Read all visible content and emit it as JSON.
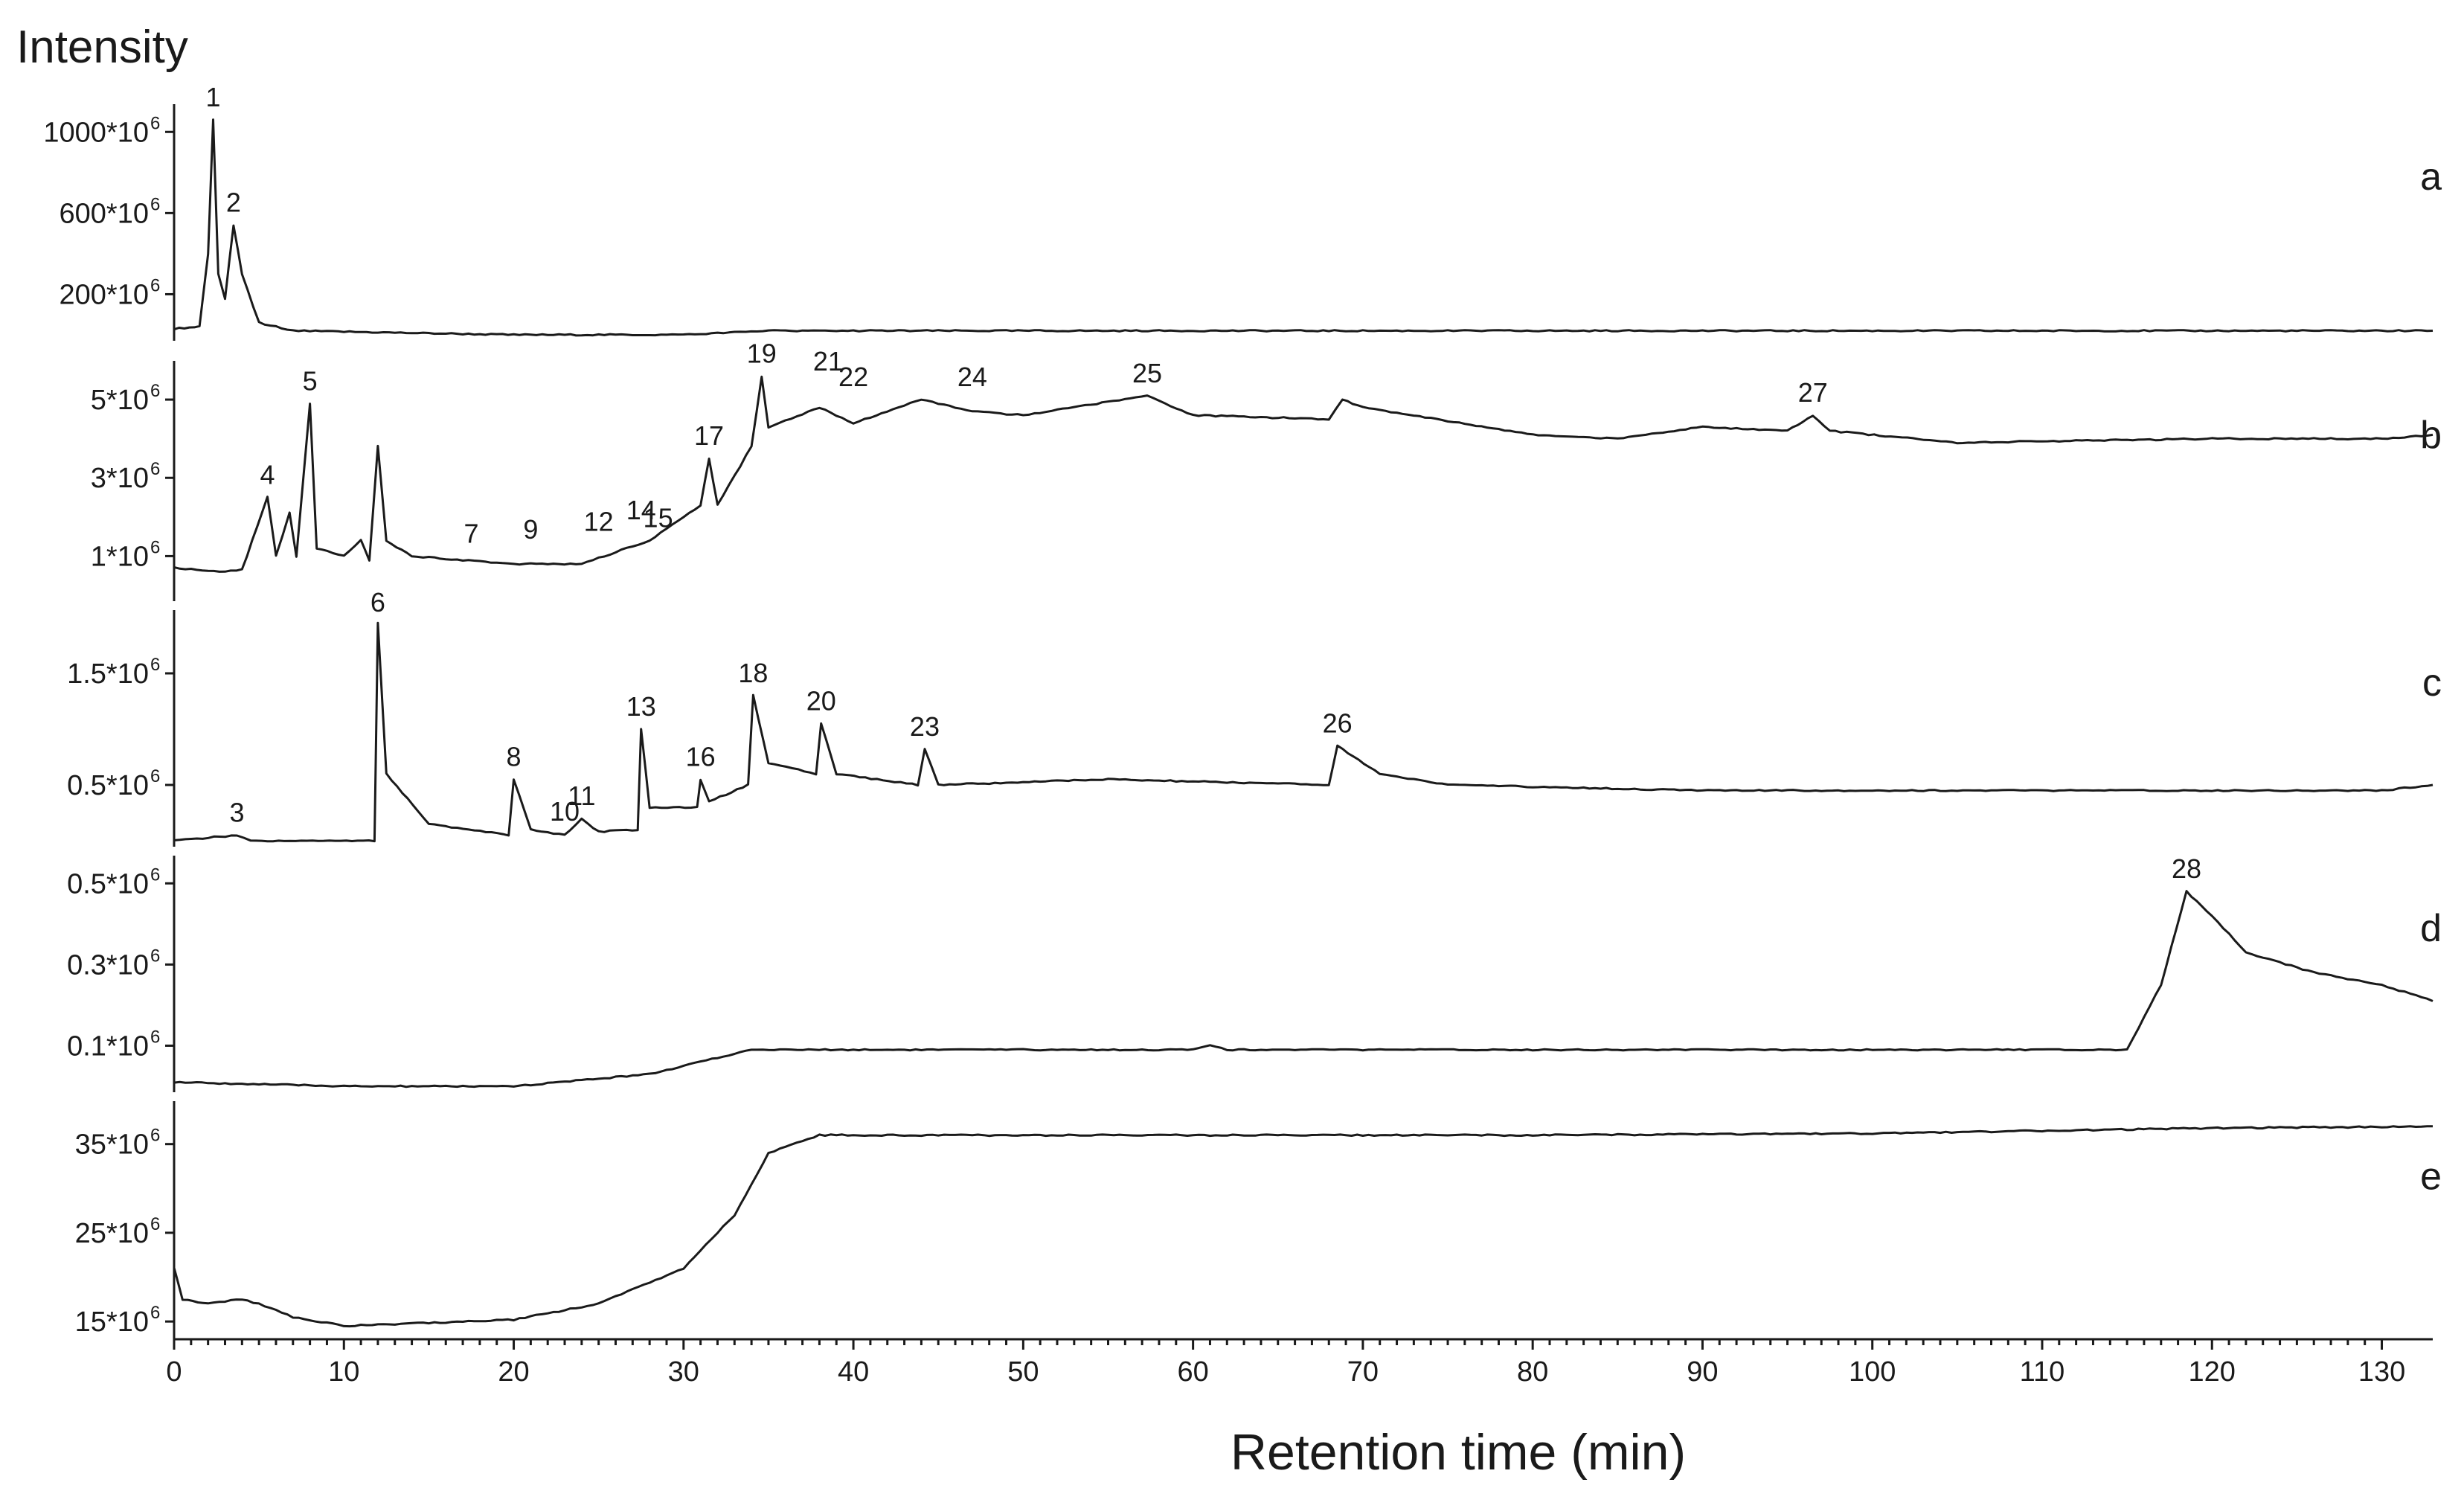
{
  "chart_data": {
    "type": "line",
    "ylabel": "Intensity",
    "xlabel": "Retention time (min)",
    "xlim": [
      0,
      133
    ],
    "x_ticks": [
      "0",
      "10",
      "20",
      "30",
      "40",
      "50",
      "60",
      "70",
      "80",
      "90",
      "100",
      "110",
      "120",
      "130"
    ],
    "panels": [
      {
        "name": "a",
        "ylim": [
          0,
          1100
        ],
        "y_ticks": [
          {
            "value": 1000,
            "label": "1000*10"
          },
          {
            "value": 600,
            "label": "600*10"
          },
          {
            "value": 200,
            "label": "200*10"
          }
        ],
        "exponent": "6",
        "points": [
          [
            0,
            30
          ],
          [
            1.5,
            40
          ],
          [
            2,
            400
          ],
          [
            2.3,
            1060
          ],
          [
            2.6,
            300
          ],
          [
            3.0,
            180
          ],
          [
            3.5,
            540
          ],
          [
            4.0,
            300
          ],
          [
            5,
            60
          ],
          [
            7,
            20
          ],
          [
            20,
            0
          ],
          [
            30,
            0
          ],
          [
            35,
            20
          ],
          [
            40,
            20
          ],
          [
            80,
            20
          ],
          [
            133,
            20
          ]
        ],
        "peaks": [
          {
            "label": "1",
            "x": 2.3,
            "y": 1060
          },
          {
            "label": "2",
            "x": 3.5,
            "y": 540
          }
        ]
      },
      {
        "name": "b",
        "ylim": [
          0,
          5.8
        ],
        "y_ticks": [
          {
            "value": 5,
            "label": "5*10"
          },
          {
            "value": 3,
            "label": "3*10"
          },
          {
            "value": 1,
            "label": "1*10"
          }
        ],
        "exponent": "6",
        "points": [
          [
            0,
            0.7
          ],
          [
            3,
            0.6
          ],
          [
            4,
            0.65
          ],
          [
            5.5,
            2.5
          ],
          [
            6,
            1.0
          ],
          [
            6.8,
            2.1
          ],
          [
            7.2,
            1.0
          ],
          [
            8.0,
            4.9
          ],
          [
            8.4,
            1.2
          ],
          [
            10,
            1.0
          ],
          [
            11,
            1.4
          ],
          [
            11.5,
            0.9
          ],
          [
            12,
            3.8
          ],
          [
            12.5,
            1.4
          ],
          [
            14,
            1.0
          ],
          [
            20,
            0.8
          ],
          [
            24,
            0.8
          ],
          [
            28,
            1.4
          ],
          [
            31,
            2.3
          ],
          [
            31.5,
            3.5
          ],
          [
            32,
            2.3
          ],
          [
            34,
            3.8
          ],
          [
            34.6,
            5.6
          ],
          [
            35,
            4.3
          ],
          [
            38,
            4.8
          ],
          [
            40,
            4.4
          ],
          [
            44,
            5.0
          ],
          [
            47,
            4.7
          ],
          [
            50,
            4.6
          ],
          [
            57.3,
            5.1
          ],
          [
            60,
            4.6
          ],
          [
            68,
            4.5
          ],
          [
            68.8,
            5.0
          ],
          [
            70,
            4.8
          ],
          [
            80,
            4.1
          ],
          [
            85,
            4.0
          ],
          [
            90,
            4.3
          ],
          [
            95,
            4.2
          ],
          [
            96.5,
            4.6
          ],
          [
            97.5,
            4.2
          ],
          [
            105,
            3.9
          ],
          [
            120,
            4.0
          ],
          [
            130,
            4.0
          ],
          [
            133,
            4.1
          ]
        ],
        "peaks": [
          {
            "label": "4",
            "x": 5.5,
            "y": 2.5
          },
          {
            "label": "5",
            "x": 8.0,
            "y": 4.9
          },
          {
            "label": "7",
            "x": 17.5,
            "y": 1.0
          },
          {
            "label": "9",
            "x": 21,
            "y": 1.1
          },
          {
            "label": "12",
            "x": 25,
            "y": 1.3
          },
          {
            "label": "14",
            "x": 27.5,
            "y": 1.6
          },
          {
            "label": "15",
            "x": 28.5,
            "y": 1.4
          },
          {
            "label": "17",
            "x": 31.5,
            "y": 3.5
          },
          {
            "label": "19",
            "x": 34.6,
            "y": 5.6
          },
          {
            "label": "21",
            "x": 38.5,
            "y": 5.4
          },
          {
            "label": "22",
            "x": 40,
            "y": 5.0
          },
          {
            "label": "24",
            "x": 47,
            "y": 5.0
          },
          {
            "label": "25",
            "x": 57.3,
            "y": 5.1
          },
          {
            "label": "27",
            "x": 96.5,
            "y": 4.6
          }
        ]
      },
      {
        "name": "c",
        "ylim": [
          0,
          2.0
        ],
        "y_ticks": [
          {
            "value": 1.5,
            "label": "1.5*10"
          },
          {
            "value": 0.5,
            "label": "0.5*10"
          }
        ],
        "exponent": "6",
        "points": [
          [
            0,
            0
          ],
          [
            3.7,
            0.05
          ],
          [
            4.5,
            0
          ],
          [
            11.8,
            0
          ],
          [
            12.0,
            1.95
          ],
          [
            12.5,
            0.6
          ],
          [
            15,
            0.15
          ],
          [
            19.7,
            0.05
          ],
          [
            20.0,
            0.55
          ],
          [
            21,
            0.1
          ],
          [
            23,
            0.05
          ],
          [
            24,
            0.2
          ],
          [
            25,
            0.08
          ],
          [
            27.3,
            0.1
          ],
          [
            27.5,
            1.0
          ],
          [
            28,
            0.3
          ],
          [
            30.8,
            0.3
          ],
          [
            31,
            0.55
          ],
          [
            31.5,
            0.35
          ],
          [
            33.8,
            0.5
          ],
          [
            34.1,
            1.3
          ],
          [
            35,
            0.7
          ],
          [
            37.8,
            0.6
          ],
          [
            38.1,
            1.05
          ],
          [
            39,
            0.6
          ],
          [
            43.8,
            0.5
          ],
          [
            44.2,
            0.82
          ],
          [
            45,
            0.5
          ],
          [
            55,
            0.55
          ],
          [
            68,
            0.5
          ],
          [
            68.5,
            0.85
          ],
          [
            71,
            0.6
          ],
          [
            75,
            0.5
          ],
          [
            90,
            0.45
          ],
          [
            130,
            0.45
          ],
          [
            133,
            0.5
          ]
        ],
        "peaks": [
          {
            "label": "3",
            "x": 3.7,
            "y": 0.05
          },
          {
            "label": "6",
            "x": 12.0,
            "y": 1.95
          },
          {
            "label": "8",
            "x": 20.0,
            "y": 0.55
          },
          {
            "label": "10",
            "x": 23,
            "y": 0.06
          },
          {
            "label": "11",
            "x": 24,
            "y": 0.2
          },
          {
            "label": "13",
            "x": 27.5,
            "y": 1.0
          },
          {
            "label": "16",
            "x": 31,
            "y": 0.55
          },
          {
            "label": "18",
            "x": 34.1,
            "y": 1.3
          },
          {
            "label": "20",
            "x": 38.1,
            "y": 1.05
          },
          {
            "label": "23",
            "x": 44.2,
            "y": 0.82
          },
          {
            "label": "26",
            "x": 68.5,
            "y": 0.85
          }
        ]
      },
      {
        "name": "d",
        "ylim": [
          0,
          0.55
        ],
        "y_ticks": [
          {
            "value": 0.5,
            "label": "0.5*10"
          },
          {
            "value": 0.3,
            "label": "0.3*10"
          },
          {
            "value": 0.1,
            "label": "0.1*10"
          }
        ],
        "exponent": "6",
        "points": [
          [
            0,
            0.01
          ],
          [
            10,
            0.0
          ],
          [
            20,
            0.0
          ],
          [
            28,
            0.03
          ],
          [
            34,
            0.09
          ],
          [
            60,
            0.09
          ],
          [
            61,
            0.1
          ],
          [
            62,
            0.09
          ],
          [
            110,
            0.09
          ],
          [
            115,
            0.09
          ],
          [
            117,
            0.25
          ],
          [
            118.5,
            0.48
          ],
          [
            120,
            0.42
          ],
          [
            122,
            0.33
          ],
          [
            126,
            0.28
          ],
          [
            130,
            0.25
          ],
          [
            133,
            0.21
          ]
        ],
        "peaks": [
          {
            "label": "28",
            "x": 118.5,
            "y": 0.48
          }
        ]
      },
      {
        "name": "e",
        "ylim": [
          13,
          39
        ],
        "y_ticks": [
          {
            "value": 35,
            "label": "35*10"
          },
          {
            "value": 25,
            "label": "25*10"
          },
          {
            "value": 15,
            "label": "15*10"
          }
        ],
        "exponent": "6",
        "points": [
          [
            0,
            21
          ],
          [
            0.5,
            17.5
          ],
          [
            2,
            17
          ],
          [
            4,
            17.5
          ],
          [
            5,
            17
          ],
          [
            7,
            15.5
          ],
          [
            10,
            14.5
          ],
          [
            20,
            15.2
          ],
          [
            25,
            17
          ],
          [
            30,
            21
          ],
          [
            33,
            27
          ],
          [
            35,
            34
          ],
          [
            38,
            36
          ],
          [
            60,
            36
          ],
          [
            80,
            36
          ],
          [
            100,
            36.2
          ],
          [
            120,
            36.8
          ],
          [
            133,
            37
          ]
        ],
        "peaks": []
      }
    ]
  }
}
